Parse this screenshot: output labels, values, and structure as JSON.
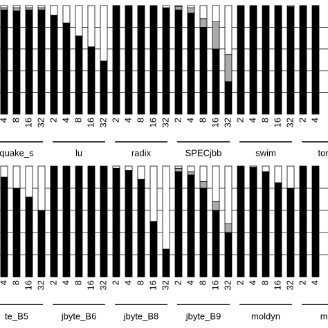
{
  "chart_data": [
    {
      "type": "stacked_bar",
      "ylim": [
        0,
        100
      ],
      "yticks": [
        20,
        40,
        60,
        80
      ],
      "grid": true,
      "groups": [
        {
          "name": "quake_s",
          "categories": [
            "4",
            "8",
            "16",
            "32"
          ],
          "series": [
            {
              "color": "#000000",
              "values": [
                96,
                95,
                96,
                96
              ]
            },
            {
              "color": "#aaaaaa",
              "values": [
                2,
                3,
                2,
                2
              ]
            },
            {
              "color": "#ffffff",
              "values": [
                2,
                2,
                2,
                2
              ]
            }
          ]
        },
        {
          "name": "lu",
          "categories": [
            "2",
            "4",
            "8",
            "16",
            "32"
          ],
          "series": [
            {
              "color": "#000000",
              "values": [
                91,
                84,
                72,
                62,
                49
              ]
            },
            {
              "color": "#aaaaaa",
              "values": [
                0,
                0,
                0,
                0,
                0
              ]
            },
            {
              "color": "#ffffff",
              "values": [
                9,
                16,
                28,
                38,
                51
              ]
            }
          ]
        },
        {
          "name": "radix",
          "categories": [
            "2",
            "4",
            "8",
            "16",
            "32"
          ],
          "series": [
            {
              "color": "#000000",
              "values": [
                100,
                100,
                100,
                100,
                98
              ]
            },
            {
              "color": "#aaaaaa",
              "values": [
                0,
                0,
                0,
                0,
                0
              ]
            },
            {
              "color": "#ffffff",
              "values": [
                0,
                0,
                0,
                0,
                2
              ]
            }
          ]
        },
        {
          "name": "SPECjbb",
          "categories": [
            "2",
            "4",
            "8",
            "16",
            "32"
          ],
          "series": [
            {
              "color": "#000000",
              "values": [
                96,
                93,
                80,
                60,
                30
              ]
            },
            {
              "color": "#aaaaaa",
              "values": [
                3,
                5,
                8,
                25,
                25
              ]
            },
            {
              "color": "#ffffff",
              "values": [
                1,
                2,
                12,
                15,
                45
              ]
            }
          ]
        },
        {
          "name": "swim",
          "categories": [
            "2",
            "4",
            "8",
            "16",
            "32"
          ],
          "series": [
            {
              "color": "#000000",
              "values": [
                100,
                100,
                100,
                100,
                99
              ]
            },
            {
              "color": "#aaaaaa",
              "values": [
                0,
                0,
                0,
                0,
                0
              ]
            },
            {
              "color": "#ffffff",
              "values": [
                0,
                0,
                0,
                0,
                1
              ]
            }
          ]
        },
        {
          "name": "tome",
          "categories": [
            "2",
            "4"
          ],
          "series": [
            {
              "color": "#000000",
              "values": [
                100,
                100
              ]
            },
            {
              "color": "#aaaaaa",
              "values": [
                0,
                0
              ]
            },
            {
              "color": "#ffffff",
              "values": [
                0,
                0
              ]
            }
          ]
        }
      ]
    },
    {
      "type": "stacked_bar",
      "ylim": [
        0,
        100
      ],
      "yticks": [
        20,
        40,
        60,
        80
      ],
      "grid": true,
      "groups": [
        {
          "name": "te_B5",
          "categories": [
            "4",
            "8",
            "16",
            "32"
          ],
          "series": [
            {
              "color": "#000000",
              "values": [
                90,
                80,
                72,
                60
              ]
            },
            {
              "color": "#aaaaaa",
              "values": [
                0,
                0,
                0,
                0
              ]
            },
            {
              "color": "#ffffff",
              "values": [
                10,
                20,
                28,
                40
              ]
            }
          ]
        },
        {
          "name": "jbyte_B6",
          "categories": [
            "2",
            "4",
            "8",
            "16",
            "32"
          ],
          "series": [
            {
              "color": "#000000",
              "values": [
                100,
                100,
                100,
                100,
                100
              ]
            },
            {
              "color": "#aaaaaa",
              "values": [
                0,
                0,
                0,
                0,
                0
              ]
            },
            {
              "color": "#ffffff",
              "values": [
                0,
                0,
                0,
                0,
                0
              ]
            }
          ]
        },
        {
          "name": "jbyte_B8",
          "categories": [
            "2",
            "4",
            "8",
            "16",
            "32"
          ],
          "series": [
            {
              "color": "#000000",
              "values": [
                98,
                96,
                88,
                50,
                25
              ]
            },
            {
              "color": "#aaaaaa",
              "values": [
                0,
                0,
                0,
                0,
                0
              ]
            },
            {
              "color": "#ffffff",
              "values": [
                2,
                4,
                12,
                50,
                75
              ]
            }
          ]
        },
        {
          "name": "jbyte_B9",
          "categories": [
            "2",
            "4",
            "8",
            "16",
            "32"
          ],
          "series": [
            {
              "color": "#000000",
              "values": [
                95,
                92,
                80,
                60,
                40
              ]
            },
            {
              "color": "#aaaaaa",
              "values": [
                3,
                3,
                6,
                8,
                8
              ]
            },
            {
              "color": "#ffffff",
              "values": [
                2,
                5,
                14,
                32,
                52
              ]
            }
          ]
        },
        {
          "name": "moldyn",
          "categories": [
            "2",
            "4",
            "8",
            "16",
            "32"
          ],
          "series": [
            {
              "color": "#000000",
              "values": [
                100,
                99,
                95,
                85,
                80
              ]
            },
            {
              "color": "#aaaaaa",
              "values": [
                0,
                0,
                0,
                0,
                0
              ]
            },
            {
              "color": "#ffffff",
              "values": [
                0,
                1,
                5,
                15,
                20
              ]
            }
          ]
        },
        {
          "name": "mtrt",
          "categories": [
            "2",
            "4"
          ],
          "series": [
            {
              "color": "#000000",
              "values": [
                100,
                100
              ]
            },
            {
              "color": "#aaaaaa",
              "values": [
                0,
                0
              ]
            },
            {
              "color": "#ffffff",
              "values": [
                0,
                0
              ]
            }
          ]
        }
      ]
    }
  ]
}
